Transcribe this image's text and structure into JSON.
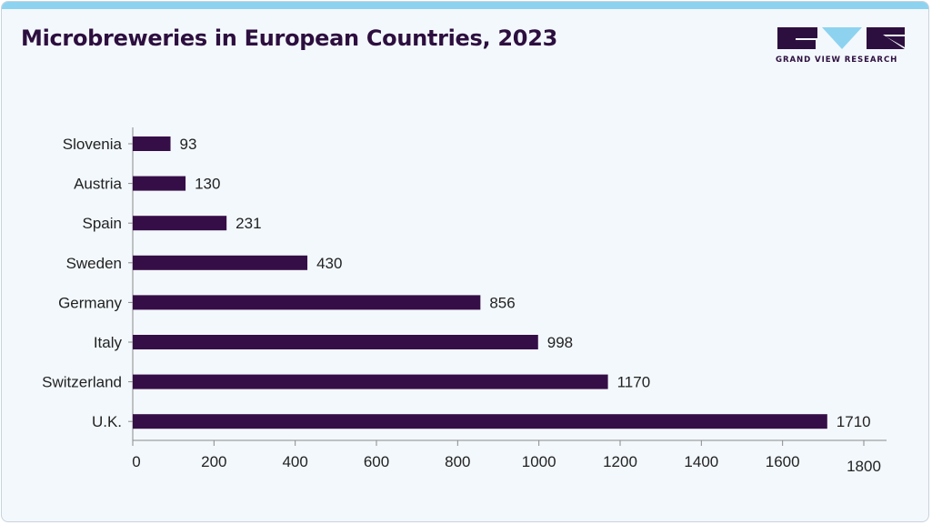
{
  "header": {
    "title": "Microbreweries in European Countries, 2023"
  },
  "logo": {
    "text": "GRAND VIEW RESEARCH",
    "brand_color": "#2d0f3f",
    "accent_color": "#8dd3f0"
  },
  "chart_data": {
    "type": "bar",
    "orientation": "horizontal",
    "title": "Microbreweries in European Countries, 2023",
    "categories": [
      "Slovenia",
      "Austria",
      "Spain",
      "Sweden",
      "Germany",
      "Italy",
      "Switzerland",
      "U.K."
    ],
    "values": [
      93,
      130,
      231,
      430,
      856,
      998,
      1170,
      1710
    ],
    "xlabel": "",
    "ylabel": "",
    "xlim": [
      0,
      1800
    ],
    "x_ticks": [
      0,
      200,
      400,
      600,
      800,
      1000,
      1200,
      1400,
      1600,
      1800
    ],
    "grid": false,
    "legend": "none",
    "bar_color": "#360e47"
  }
}
